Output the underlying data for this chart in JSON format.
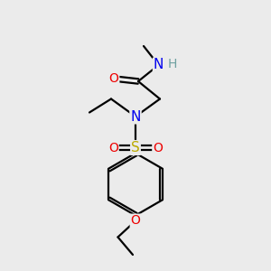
{
  "bg_color": "#ebebeb",
  "atom_colors": {
    "C": "#000000",
    "H": "#6fa0a0",
    "N": "#0000ee",
    "O": "#ee0000",
    "S": "#bbaa00"
  },
  "bond_color": "#000000",
  "figsize": [
    3.0,
    3.0
  ],
  "dpi": 100,
  "bond_lw": 1.6,
  "font_size": 9.5
}
